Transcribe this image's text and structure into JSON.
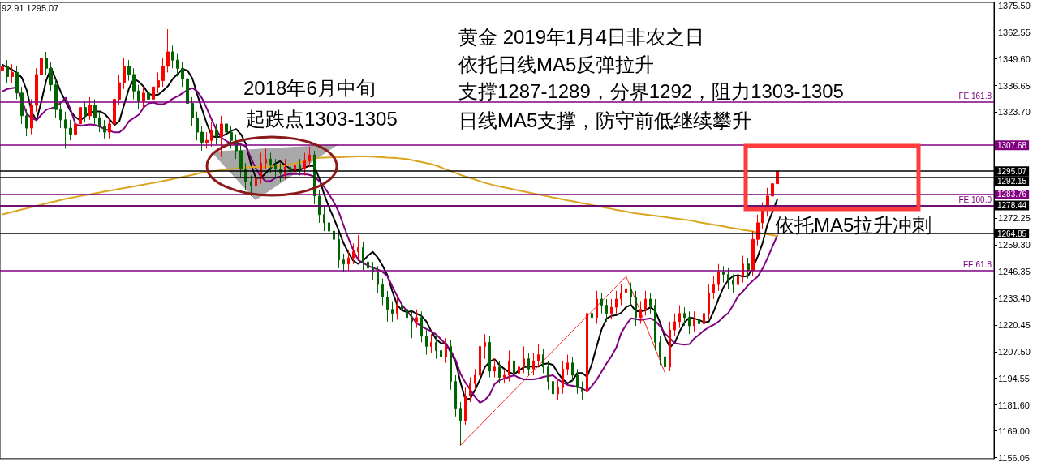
{
  "chart_data": {
    "type": "candlestick",
    "categories": [
      null,
      null,
      null,
      null,
      null,
      null,
      null,
      null,
      null,
      null,
      null,
      null,
      null,
      null,
      null,
      null,
      null,
      null,
      null,
      null,
      null,
      null,
      null,
      null,
      null,
      null,
      null,
      null,
      null,
      null,
      null,
      null,
      null,
      null,
      null,
      null,
      null,
      null,
      null,
      null,
      null,
      null,
      null,
      null,
      null,
      null,
      null,
      null,
      null,
      null,
      null,
      null,
      null,
      null,
      null,
      null,
      null,
      null,
      null,
      null,
      null,
      null,
      null,
      null,
      null,
      null,
      null,
      null,
      null,
      null,
      null,
      null,
      null,
      null,
      null,
      null,
      null,
      null,
      null,
      null,
      null,
      null,
      null,
      null,
      null,
      null,
      null,
      null,
      null,
      null,
      null,
      null,
      null,
      null,
      null,
      null,
      null,
      null,
      null,
      null,
      null,
      null,
      null,
      null,
      null,
      null,
      null,
      null,
      null,
      null,
      null,
      null,
      null,
      null,
      null,
      null,
      null,
      null,
      null,
      null,
      null,
      null,
      null,
      null,
      null,
      null,
      null,
      null,
      null,
      null,
      null,
      null,
      null,
      null,
      null,
      null,
      null,
      null,
      null,
      null,
      null,
      null,
      null,
      null,
      null,
      null,
      null,
      null,
      null,
      null,
      null,
      null,
      null,
      null,
      null,
      null,
      null,
      null,
      null,
      null
    ],
    "ohlc": [
      [
        1344,
        1350,
        1340,
        1346
      ],
      [
        1346,
        1349,
        1338,
        1341
      ],
      [
        1341,
        1347,
        1338,
        1343
      ],
      [
        1343,
        1346,
        1330,
        1333
      ],
      [
        1333,
        1336,
        1318,
        1322
      ],
      [
        1322,
        1325,
        1312,
        1316
      ],
      [
        1316,
        1330,
        1313,
        1327
      ],
      [
        1327,
        1345,
        1324,
        1342
      ],
      [
        1342,
        1358,
        1339,
        1350
      ],
      [
        1350,
        1353,
        1342,
        1345
      ],
      [
        1345,
        1348,
        1334,
        1337
      ],
      [
        1337,
        1340,
        1321,
        1325
      ],
      [
        1325,
        1329,
        1316,
        1320
      ],
      [
        1320,
        1324,
        1306,
        1316
      ],
      [
        1316,
        1320,
        1310,
        1313
      ],
      [
        1313,
        1321,
        1310,
        1318
      ],
      [
        1318,
        1330,
        1315,
        1326
      ],
      [
        1326,
        1329,
        1319,
        1322
      ],
      [
        1322,
        1331,
        1320,
        1327
      ],
      [
        1327,
        1330,
        1318,
        1321
      ],
      [
        1321,
        1324,
        1314,
        1317
      ],
      [
        1317,
        1320,
        1311,
        1314
      ],
      [
        1314,
        1321,
        1311,
        1318
      ],
      [
        1318,
        1334,
        1316,
        1330
      ],
      [
        1330,
        1342,
        1327,
        1338
      ],
      [
        1338,
        1350,
        1335,
        1346
      ],
      [
        1346,
        1349,
        1339,
        1342
      ],
      [
        1342,
        1345,
        1330,
        1334
      ],
      [
        1334,
        1337,
        1325,
        1329
      ],
      [
        1329,
        1336,
        1326,
        1333
      ],
      [
        1333,
        1336,
        1326,
        1330
      ],
      [
        1330,
        1339,
        1328,
        1336
      ],
      [
        1336,
        1343,
        1333,
        1339
      ],
      [
        1339,
        1350,
        1336,
        1346
      ],
      [
        1346,
        1364,
        1343,
        1353
      ],
      [
        1353,
        1356,
        1345,
        1349
      ],
      [
        1349,
        1352,
        1341,
        1345
      ],
      [
        1345,
        1348,
        1336,
        1340
      ],
      [
        1340,
        1343,
        1324,
        1328
      ],
      [
        1328,
        1331,
        1317,
        1321
      ],
      [
        1321,
        1324,
        1310,
        1314
      ],
      [
        1314,
        1317,
        1305,
        1309
      ],
      [
        1309,
        1314,
        1306,
        1310
      ],
      [
        1310,
        1319,
        1307,
        1315
      ],
      [
        1315,
        1318,
        1308,
        1312
      ],
      [
        1312,
        1322,
        1302,
        1318
      ],
      [
        1318,
        1321,
        1310,
        1314
      ],
      [
        1314,
        1317,
        1306,
        1310
      ],
      [
        1310,
        1313,
        1301,
        1305
      ],
      [
        1305,
        1308,
        1292,
        1296
      ],
      [
        1296,
        1299,
        1286,
        1290
      ],
      [
        1290,
        1293,
        1283,
        1288
      ],
      [
        1288,
        1296,
        1285,
        1292
      ],
      [
        1292,
        1304,
        1289,
        1299
      ],
      [
        1299,
        1306,
        1296,
        1301
      ],
      [
        1301,
        1304,
        1294,
        1298
      ],
      [
        1298,
        1301,
        1292,
        1296
      ],
      [
        1296,
        1299,
        1290,
        1294
      ],
      [
        1294,
        1301,
        1291,
        1297
      ],
      [
        1297,
        1300,
        1292,
        1295
      ],
      [
        1295,
        1302,
        1292,
        1298
      ],
      [
        1298,
        1301,
        1293,
        1296
      ],
      [
        1296,
        1304,
        1293,
        1300
      ],
      [
        1300,
        1307,
        1297,
        1303
      ],
      [
        1303,
        1305,
        1279,
        1283
      ],
      [
        1283,
        1286,
        1270,
        1274
      ],
      [
        1274,
        1278,
        1266,
        1270
      ],
      [
        1270,
        1273,
        1262,
        1266
      ],
      [
        1266,
        1269,
        1258,
        1262
      ],
      [
        1262,
        1265,
        1248,
        1252
      ],
      [
        1252,
        1255,
        1246,
        1250
      ],
      [
        1250,
        1257,
        1247,
        1253
      ],
      [
        1253,
        1260,
        1250,
        1256
      ],
      [
        1256,
        1264,
        1252,
        1258
      ],
      [
        1258,
        1261,
        1247,
        1251
      ],
      [
        1251,
        1254,
        1244,
        1248
      ],
      [
        1248,
        1251,
        1242,
        1246
      ],
      [
        1246,
        1249,
        1236,
        1240
      ],
      [
        1240,
        1243,
        1230,
        1234
      ],
      [
        1234,
        1237,
        1222,
        1228
      ],
      [
        1228,
        1232,
        1222,
        1226
      ],
      [
        1226,
        1234,
        1223,
        1230
      ],
      [
        1230,
        1233,
        1225,
        1228
      ],
      [
        1228,
        1231,
        1220,
        1224
      ],
      [
        1224,
        1227,
        1214,
        1222
      ],
      [
        1222,
        1228,
        1219,
        1224
      ],
      [
        1224,
        1227,
        1212,
        1215
      ],
      [
        1215,
        1218,
        1206,
        1210
      ],
      [
        1210,
        1216,
        1207,
        1212
      ],
      [
        1212,
        1215,
        1204,
        1208
      ],
      [
        1208,
        1211,
        1200,
        1205
      ],
      [
        1205,
        1214,
        1202,
        1210
      ],
      [
        1210,
        1213,
        1189,
        1193
      ],
      [
        1193,
        1196,
        1176,
        1180
      ],
      [
        1180,
        1183,
        1162,
        1174
      ],
      [
        1174,
        1190,
        1172,
        1186
      ],
      [
        1186,
        1195,
        1183,
        1192
      ],
      [
        1192,
        1199,
        1189,
        1196
      ],
      [
        1196,
        1214,
        1193,
        1210
      ],
      [
        1210,
        1216,
        1204,
        1212
      ],
      [
        1212,
        1215,
        1195,
        1198
      ],
      [
        1198,
        1204,
        1195,
        1200
      ],
      [
        1200,
        1203,
        1192,
        1195
      ],
      [
        1195,
        1199,
        1192,
        1196
      ],
      [
        1196,
        1208,
        1193,
        1203
      ],
      [
        1203,
        1206,
        1194,
        1197
      ],
      [
        1197,
        1204,
        1194,
        1200
      ],
      [
        1200,
        1210,
        1197,
        1204
      ],
      [
        1204,
        1207,
        1196,
        1199
      ],
      [
        1199,
        1207,
        1196,
        1203
      ],
      [
        1203,
        1211,
        1200,
        1206
      ],
      [
        1206,
        1209,
        1197,
        1200
      ],
      [
        1200,
        1203,
        1189,
        1193
      ],
      [
        1193,
        1196,
        1183,
        1187
      ],
      [
        1187,
        1194,
        1184,
        1190
      ],
      [
        1190,
        1203,
        1187,
        1199
      ],
      [
        1199,
        1206,
        1196,
        1202
      ],
      [
        1202,
        1205,
        1193,
        1196
      ],
      [
        1196,
        1199,
        1187,
        1190
      ],
      [
        1190,
        1193,
        1184,
        1188
      ],
      [
        1188,
        1230,
        1186,
        1226
      ],
      [
        1226,
        1229,
        1220,
        1224
      ],
      [
        1224,
        1237,
        1221,
        1233
      ],
      [
        1233,
        1236,
        1226,
        1230
      ],
      [
        1230,
        1233,
        1222,
        1226
      ],
      [
        1226,
        1233,
        1223,
        1229
      ],
      [
        1229,
        1237,
        1226,
        1233
      ],
      [
        1233,
        1240,
        1230,
        1236
      ],
      [
        1236,
        1244,
        1233,
        1238
      ],
      [
        1238,
        1241,
        1230,
        1234
      ],
      [
        1234,
        1237,
        1220,
        1224
      ],
      [
        1224,
        1232,
        1221,
        1228
      ],
      [
        1228,
        1237,
        1225,
        1233
      ],
      [
        1233,
        1236,
        1226,
        1230
      ],
      [
        1230,
        1233,
        1208,
        1212
      ],
      [
        1212,
        1215,
        1201,
        1205
      ],
      [
        1205,
        1208,
        1197,
        1200
      ],
      [
        1200,
        1222,
        1198,
        1218
      ],
      [
        1218,
        1226,
        1215,
        1222
      ],
      [
        1222,
        1230,
        1219,
        1226
      ],
      [
        1226,
        1229,
        1220,
        1224
      ],
      [
        1224,
        1227,
        1216,
        1220
      ],
      [
        1220,
        1227,
        1217,
        1223
      ],
      [
        1223,
        1226,
        1217,
        1221
      ],
      [
        1221,
        1230,
        1218,
        1226
      ],
      [
        1226,
        1240,
        1223,
        1236
      ],
      [
        1236,
        1244,
        1233,
        1240
      ],
      [
        1240,
        1250,
        1237,
        1246
      ],
      [
        1246,
        1249,
        1241,
        1245
      ],
      [
        1245,
        1248,
        1238,
        1242
      ],
      [
        1242,
        1245,
        1236,
        1240
      ],
      [
        1240,
        1248,
        1237,
        1244
      ],
      [
        1244,
        1254,
        1241,
        1250
      ],
      [
        1250,
        1253,
        1243,
        1247
      ],
      [
        1247,
        1266,
        1244,
        1262
      ],
      [
        1262,
        1274,
        1259,
        1270
      ],
      [
        1270,
        1280,
        1267,
        1276
      ],
      [
        1276,
        1287,
        1273,
        1283
      ],
      [
        1283,
        1293,
        1280,
        1289
      ],
      [
        1289,
        1298.4,
        1286,
        1295.07
      ]
    ],
    "colors": [
      "#ff0000",
      "#006400",
      "#ff0000",
      "#006400",
      "#006400",
      "#006400",
      "#ff0000",
      "#ff0000",
      "#ff0000",
      "#006400",
      "#006400",
      "#006400",
      "#006400",
      "#006400",
      "#006400",
      "#ff0000",
      "#ff0000",
      "#006400",
      "#ff0000",
      "#006400",
      "#006400",
      "#006400",
      "#ff0000",
      "#ff0000",
      "#ff0000",
      "#ff0000",
      "#006400",
      "#006400",
      "#006400",
      "#ff0000",
      "#006400",
      "#ff0000",
      "#ff0000",
      "#ff0000",
      "#ff0000",
      "#006400",
      "#006400",
      "#006400",
      "#006400",
      "#006400",
      "#006400",
      "#006400",
      "#ff0000",
      "#ff0000",
      "#006400",
      "#ff0000",
      "#006400",
      "#006400",
      "#006400",
      "#006400",
      "#006400",
      "#006400",
      "#ff0000",
      "#ff0000",
      "#ff0000",
      "#006400",
      "#006400",
      "#006400",
      "#ff0000",
      "#006400",
      "#ff0000",
      "#006400",
      "#ff0000",
      "#ff0000",
      "#006400",
      "#006400",
      "#006400",
      "#006400",
      "#006400",
      "#006400",
      "#006400",
      "#ff0000",
      "#ff0000",
      "#ff0000",
      "#006400",
      "#006400",
      "#006400",
      "#006400",
      "#006400",
      "#006400",
      "#006400",
      "#ff0000",
      "#006400",
      "#006400",
      "#006400",
      "#ff0000",
      "#006400",
      "#006400",
      "#ff0000",
      "#006400",
      "#006400",
      "#ff0000",
      "#006400",
      "#006400",
      "#006400",
      "#ff0000",
      "#ff0000",
      "#ff0000",
      "#ff0000",
      "#ff0000",
      "#006400",
      "#ff0000",
      "#006400",
      "#ff0000",
      "#ff0000",
      "#006400",
      "#ff0000",
      "#ff0000",
      "#006400",
      "#ff0000",
      "#ff0000",
      "#006400",
      "#006400",
      "#006400",
      "#ff0000",
      "#ff0000",
      "#ff0000",
      "#006400",
      "#006400",
      "#006400",
      "#ff0000",
      "#006400",
      "#ff0000",
      "#006400",
      "#006400",
      "#ff0000",
      "#ff0000",
      "#ff0000",
      "#ff0000",
      "#006400",
      "#006400",
      "#ff0000",
      "#ff0000",
      "#006400",
      "#006400",
      "#006400",
      "#006400",
      "#ff0000",
      "#ff0000",
      "#ff0000",
      "#006400",
      "#006400",
      "#ff0000",
      "#006400",
      "#ff0000",
      "#ff0000",
      "#ff0000",
      "#ff0000",
      "#006400",
      "#006400",
      "#006400",
      "#ff0000",
      "#ff0000",
      "#006400",
      "#ff0000",
      "#ff0000",
      "#ff0000",
      "#ff0000",
      "#ff0000",
      "#ff0000"
    ],
    "series": [
      {
        "type": "line",
        "color": "#000000",
        "values": [
          1346.7,
          1345.5,
          1344.3,
          1342.8,
          1340.4,
          1334.2,
          1323.7,
          1319.8,
          1329.1,
          1339.3,
          1345.1,
          1339.3,
          1333.4,
          1328.7,
          1324.1,
          1321.3,
          1319.8,
          1321.7,
          1323.7,
          1324.1,
          1324.1,
          1322.9,
          1320.2,
          1317.5,
          1319.4,
          1327.6,
          1335.4,
          1340.0,
          1338.5,
          1336.1,
          1332.6,
          1331.9,
          1332.2,
          1334.2,
          1336.5,
          1340.0,
          1342.4,
          1344.7,
          1343.9,
          1340.0,
          1332.2,
          1324.9,
          1317.8,
          1312.0,
          1311.6,
          1312.0,
          1313.2,
          1314.7,
          1315.5,
          1312.8,
          1308.1,
          1298.4,
          1291.8,
          1291.8,
          1294.1,
          1296.4,
          1298.8,
          1299.9,
          1298.0,
          1296.4,
          1295.6,
          1295.6,
          1296.8,
          1297.6,
          1297.6,
          1291.8,
          1284.0,
          1277.7,
          1272.3,
          1266.4,
          1260.2,
          1255.5,
          1251.6,
          1250.1,
          1251.6,
          1254.0,
          1255.9,
          1253.2,
          1249.3,
          1244.6,
          1236.9,
          1230.2,
          1227.5,
          1226.7,
          1227.1,
          1225.9,
          1224.8,
          1222.1,
          1217.4,
          1213.5,
          1211.5,
          1211.5,
          null,
          1202.6,
          1192.5,
          1184.3,
          1184.7,
          1188.9,
          1194.0,
          1199.9,
          1202.6,
          1203.8,
          1201.0,
          1199.1,
          1197.5,
          1196.4,
          1198.3,
          1199.9,
          1200.2,
          1200.2,
          1200.2,
          1201.4,
          1201.8,
          1201.0,
          1197.1,
          1194.0,
          1192.1,
          1193.6,
          1197.1,
          1197.1,
          1195.2,
          1201.8,
          1210.4,
          1218.5,
          1223.6,
          1224.8,
          1225.2,
          1226.3,
          1229.1,
          1230.2,
          1227.1,
          1227.1,
          1227.5,
          1229.1,
          1227.1,
          1221.3,
          1214.3,
          1209.6,
          1211.9,
          1217.4,
          1221.7,
          1224.0,
          1223.6,
          1222.8,
          1221.7,
          1222.1,
          1227.1,
          1233.3,
          1238.8,
          1242.3,
          1244.2,
          1244.6,
          1243.9,
          1244.2,
          1248.1,
          1253.6,
          1260.2,
          1269.2,
          1275.0,
          1281.2
        ]
      },
      {
        "type": "line",
        "color": "#800080",
        "values": [
          1333.8,
          1335.0,
          1335.4,
          1335.8,
          1329.5,
          1322.9,
          1320.9,
          1319.8,
          1322.5,
          1324.9,
          1325.6,
          1326.4,
          1328.4,
          1330.7,
          1324.9,
          1317.8,
          1317.1,
          1317.5,
          1317.8,
          1317.5,
          1316.7,
          1315.5,
          1314.7,
          1313.9,
          1313.9,
          1315.9,
          1319.4,
          1321.0,
          1322.5,
          1326.0,
          1328.0,
          1328.4,
          1327.6,
          1327.6,
          1328.7,
          1330.3,
          1331.5,
          1333.0,
          1334.6,
          1335.4,
          1333.8,
          1330.3,
          1325.2,
          1319.8,
          1314.7,
          1311.2,
          1309.7,
          1308.5,
          1308.1,
          1308.1,
          1306.9,
          1301.5,
          1296.4,
          1292.5,
          1290.2,
          1290.2,
          1291.8,
          1292.5,
          1293.3,
          1293.7,
          1293.7,
          1293.7,
          1293.7,
          1293.3,
          1292.5,
          1290.2,
          1287.5,
          1284.0,
          1280.1,
          1275.4,
          1268.8,
          1262.5,
          1256.7,
          1252.0,
          1250.5,
          1249.3,
          1248.1,
          1247.4,
          1246.2,
          1244.2,
          1239.2,
          1234.5,
          1230.2,
          1227.1,
          1224.4,
          1221.3,
          1219.7,
          1218.5,
          1217.4,
          1215.8,
          1213.5,
          1211.1,
          1208.0,
          1203.4,
          1196.7,
          1192.5,
          1189.0,
          1185.4,
          1182.7,
          1183.9,
          1186.6,
          1191.7,
          1193.6,
          1194.4,
          1195.2,
          1196.0,
          1194.8,
          1194.0,
          1194.0,
          1194.0,
          1194.4,
          1195.2,
          1195.6,
          1196.0,
          1194.0,
          1192.5,
          1191.3,
          1190.9,
          1190.5,
          1189.7,
          1188.2,
          1190.9,
          1194.0,
          1197.9,
          1201.8,
          1205.3,
          1209.6,
          1216.6,
          1220.5,
          1223.6,
          1223.2,
          1222.8,
          1223.2,
          1223.6,
          1222.4,
          1219.7,
          1216.2,
          1213.9,
          1211.5,
          1211.1,
          1210.8,
          1211.1,
          1213.9,
          1215.8,
          1217.8,
          1219.3,
          1220.5,
          1222.1,
          1224.4,
          1226.3,
          1230.2,
          1234.5,
          1236.8,
          1239.6,
          1241.9,
          1243.9,
          1247.8,
          1252.8,
          1258.3,
          1263.7
        ]
      },
      {
        "type": "line",
        "color": "#daa520",
        "values": [
          1274.1,
          1274.7,
          1275.3,
          1275.9,
          1276.5,
          1277.0,
          1277.6,
          1278.2,
          1278.8,
          1279.4,
          1280.0,
          1280.5,
          1281.1,
          1281.7,
          1282.1,
          1282.6,
          1283.0,
          1283.4,
          1283.8,
          1284.3,
          1284.7,
          1285.2,
          1285.6,
          1286.0,
          1286.5,
          1286.9,
          1287.3,
          1287.7,
          1288.2,
          1288.6,
          1289.0,
          1289.4,
          1289.8,
          1290.3,
          1290.8,
          1291.3,
          1291.8,
          1292.3,
          1292.8,
          1293.3,
          1293.9,
          1294.4,
          1294.7,
          1295.0,
          1295.3,
          1295.6,
          1295.8,
          1296.1,
          1296.4,
          1296.7,
          1296.9,
          1297.0,
          1297.1,
          1297.1,
          1297.2,
          1297.3,
          1297.4,
          1297.5,
          1297.7,
          1298.3,
          1298.8,
          1299.4,
          1300.0,
          1300.6,
          1301.2,
          1301.5,
          1301.6,
          1301.7,
          1301.8,
          1301.8,
          1301.9,
          1302.0,
          1302.1,
          1302.2,
          1302.2,
          1302.2,
          1302.1,
          1301.9,
          1301.8,
          1301.6,
          1301.5,
          1301.4,
          1301.2,
          1301.0,
          1300.5,
          1300.0,
          1299.5,
          1299.0,
          1298.5,
          1297.8,
          1296.9,
          1296.0,
          1295.1,
          1294.2,
          1293.3,
          1292.5,
          1291.8,
          1291.0,
          1290.2,
          1289.4,
          1288.8,
          1288.2,
          1287.7,
          1287.2,
          1286.7,
          1286.2,
          1285.7,
          1285.2,
          1284.7,
          1284.2,
          1283.7,
          1283.3,
          1282.8,
          1282.3,
          1281.9,
          1281.4,
          1280.9,
          1280.5,
          1280.0,
          1279.5,
          1279.1,
          1278.6,
          1278.1,
          1277.7,
          1277.2,
          1276.8,
          1276.3,
          1275.9,
          1275.5,
          1275.0,
          1274.6,
          1274.3,
          1274.0,
          1273.7,
          1273.4,
          1273.1,
          1272.8,
          1272.4,
          1272.1,
          1271.8,
          1271.5,
          1271.2,
          1270.8,
          1270.3,
          1269.9,
          1269.5,
          1269.1,
          1268.7,
          1268.3,
          1267.8,
          1267.4,
          1267.0,
          1266.6,
          1266.2,
          1265.8,
          1265.4,
          1264.9,
          1264.5,
          1264.1,
          1263.7
        ]
      },
      {
        "type": "line",
        "color": "#ff0000",
        "line_style": "dotted",
        "values": [
          null,
          null,
          null,
          null,
          null,
          null,
          null,
          null,
          null,
          null,
          null,
          null,
          null,
          null,
          null,
          null,
          null,
          null,
          null,
          null,
          null,
          null,
          null,
          null,
          null,
          null,
          null,
          null,
          null,
          null,
          null,
          null,
          null,
          null,
          null,
          null,
          null,
          null,
          null,
          null,
          null,
          null,
          null,
          null,
          null,
          null,
          null,
          null,
          null,
          null,
          null,
          null,
          null,
          null,
          null,
          null,
          null,
          null,
          null,
          null,
          null,
          null,
          null,
          null,
          null,
          null,
          null,
          null,
          null,
          null,
          null,
          null,
          null,
          null,
          null,
          null,
          null,
          null,
          null,
          null,
          null,
          null,
          null,
          null,
          null,
          null,
          null,
          null,
          null,
          null,
          null,
          null,
          null,
          null,
          1162,
          null,
          null,
          null,
          null,
          null,
          null,
          null,
          null,
          null,
          null,
          null,
          null,
          null,
          null,
          null,
          null,
          null,
          null,
          null,
          null,
          null,
          null,
          null,
          null,
          null,
          null,
          null,
          null,
          null,
          null,
          null,
          null,
          null,
          1244,
          null,
          null,
          null,
          null,
          null,
          null,
          null,
          1197,
          null,
          null,
          null,
          null,
          null,
          null,
          null,
          null,
          null,
          null,
          null,
          null,
          null,
          null,
          null,
          null,
          null,
          null,
          null,
          null,
          null,
          null,
          null
        ]
      }
    ],
    "ylim": [
      1155.5,
      1377
    ],
    "yticks": [
      {
        "value": 1375.5,
        "label": "1375.50"
      },
      1362.55,
      {
        "value": 1349.6,
        "label": "1349.60"
      },
      1336.65,
      {
        "value": 1323.7,
        "label": "1323.70"
      },
      1272.25,
      {
        "value": 1259.3,
        "label": "1259.30"
      },
      1246.35,
      {
        "value": 1233.4,
        "label": "1233.40"
      },
      1220.45,
      {
        "value": 1207.5,
        "label": "1207.50"
      },
      1194.55,
      {
        "value": 1181.6,
        "label": "1181.60"
      },
      {
        "value": 1169,
        "label": "1169.00"
      },
      1156.05
    ],
    "ref_lines": [
      {
        "axis": "y",
        "value": 1307.68,
        "label": "1307.68",
        "color": "#800080"
      },
      {
        "axis": "y",
        "value": 1295.07,
        "label": "1295.07",
        "color": "#000000"
      },
      {
        "axis": "y",
        "value": 1292.15,
        "label": "1292.15",
        "color": "#000000"
      },
      {
        "axis": "y",
        "value": 1283.76,
        "label": "1283.76",
        "color": "#800080"
      },
      {
        "axis": "y",
        "value": 1278.44,
        "label": "1278.44",
        "color": "#000000"
      },
      {
        "axis": "y",
        "value": 1264.85,
        "label": "1264.85",
        "color": "#000000"
      },
      {
        "axis": "y",
        "value": 1328.7,
        "color": "#800080"
      },
      {
        "axis": "y",
        "value": 1278.3,
        "color": "#800080"
      },
      {
        "axis": "y",
        "value": 1246.9,
        "color": "#800080"
      }
    ],
    "annotations": [
      "92.91 1295.07",
      "2018年6月中旬",
      "起跌点1303-1305",
      "黄金 2019年1月4日非农之日",
      "依托日线MA5反弹拉升",
      "支撑1287-1289，分界1292，阻力1303-1305",
      "日线MA5支撑，防守前低继续攀升",
      "依托MA5拉升冲刺",
      {
        "text": "FE 161.8",
        "y": 1328.7
      },
      {
        "text": "FE 100.0",
        "y": 1278.3
      },
      {
        "text": "FE 61.8",
        "y": 1246.9
      }
    ],
    "grid": false,
    "line_style": "solid",
    "tick_labels": "y"
  }
}
